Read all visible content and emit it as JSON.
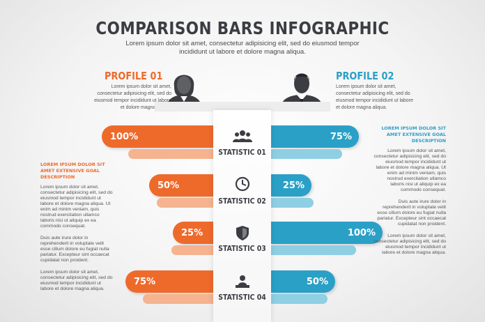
{
  "header": {
    "title": "COMPARISON BARS INFOGRAPHIC",
    "subtitle": "Lorem ipsum dolor sit amet, consectetur adipisicing elit, sed do eiusmod tempor incididunt ut labore et dolore magna aliqua."
  },
  "profiles": {
    "left": {
      "name": "PROFILE 01",
      "desc": "Lorem ipsum dolor sit amet, consectetur adipisicing elit, sed do eiusmod tempor incididunt ut labore et dolore magna aliqua.",
      "avatar_icon": "female-avatar-icon",
      "color": "#ee6a2b"
    },
    "right": {
      "name": "PROFILE 02",
      "desc": "Lorem ipsum dolor sit amet, consectetur adipisicing elit, sed do eiusmod tempor incididunt ut labore et dolore magna aliqua.",
      "avatar_icon": "male-avatar-icon",
      "color": "#2aa0c7"
    }
  },
  "statistics": [
    {
      "label": "STATISTIC 01",
      "icon": "group-icon",
      "left_value": "100%",
      "right_value": "75%",
      "left_fraction": 1.0,
      "right_fraction": 0.75
    },
    {
      "label": "STATISTIC 02",
      "icon": "clock-icon",
      "left_value": "50%",
      "right_value": "25%",
      "left_fraction": 0.5,
      "right_fraction": 0.25
    },
    {
      "label": "STATISTIC 03",
      "icon": "shield-icon",
      "left_value": "25%",
      "right_value": "100%",
      "left_fraction": 0.25,
      "right_fraction": 1.0
    },
    {
      "label": "STATISTIC 04",
      "icon": "presenter-icon",
      "left_value": "75%",
      "right_value": "50%",
      "left_fraction": 0.75,
      "right_fraction": 0.5
    }
  ],
  "goal_left": {
    "title": "LOREM IPSUM DOLOR SIT AMET EXTENSIVE GOAL DESCRIPTION",
    "paragraphs": [
      "Lorem ipsum dolor sit amet, consectetur adipisicing elit, sed do eiusmod tempor incididunt ut labore et dolore magna aliqua. Ut enim ad minim veniam, quis nostrud exercitation ullamco laboris nisi ut aliquip ex ea commodo consequat.",
      "Duis aute irure dolor in reprehenderit in voluptate velit esse cillum dolore eu fugiat nulla pariatur. Excepteur sint occaecat cupidatat non proident.",
      "Lorem ipsum dolor sit amet, consectetur adipisicing elit, sed do eiusmod tempor incididunt ut labore et dolore magna aliqua."
    ]
  },
  "goal_right": {
    "title": "LOREM IPSUM DOLOR SIT AMET EXTENSIVE GOAL DESCRIPTION",
    "paragraphs": [
      "Lorem ipsum dolor sit amet, consectetur adipisicing elit, sed do eiusmod tempor incididunt ut labore et dolore magna aliqua. Ut enim ad minim veniam, quis nostrud exercitation ullamco laboris nisi ut aliquip ex ea commodo consequat.",
      "Duis aute irure dolor in reprehenderit in voluptate velit esse cillum dolore eu fugiat nulla pariatur. Excepteur sint occaecat cupidatat non proident.",
      "Lorem ipsum dolor sit amet, consectetur adipisicing elit, sed do eiusmod tempor incididunt ut labore et dolore magna aliqua."
    ]
  }
}
